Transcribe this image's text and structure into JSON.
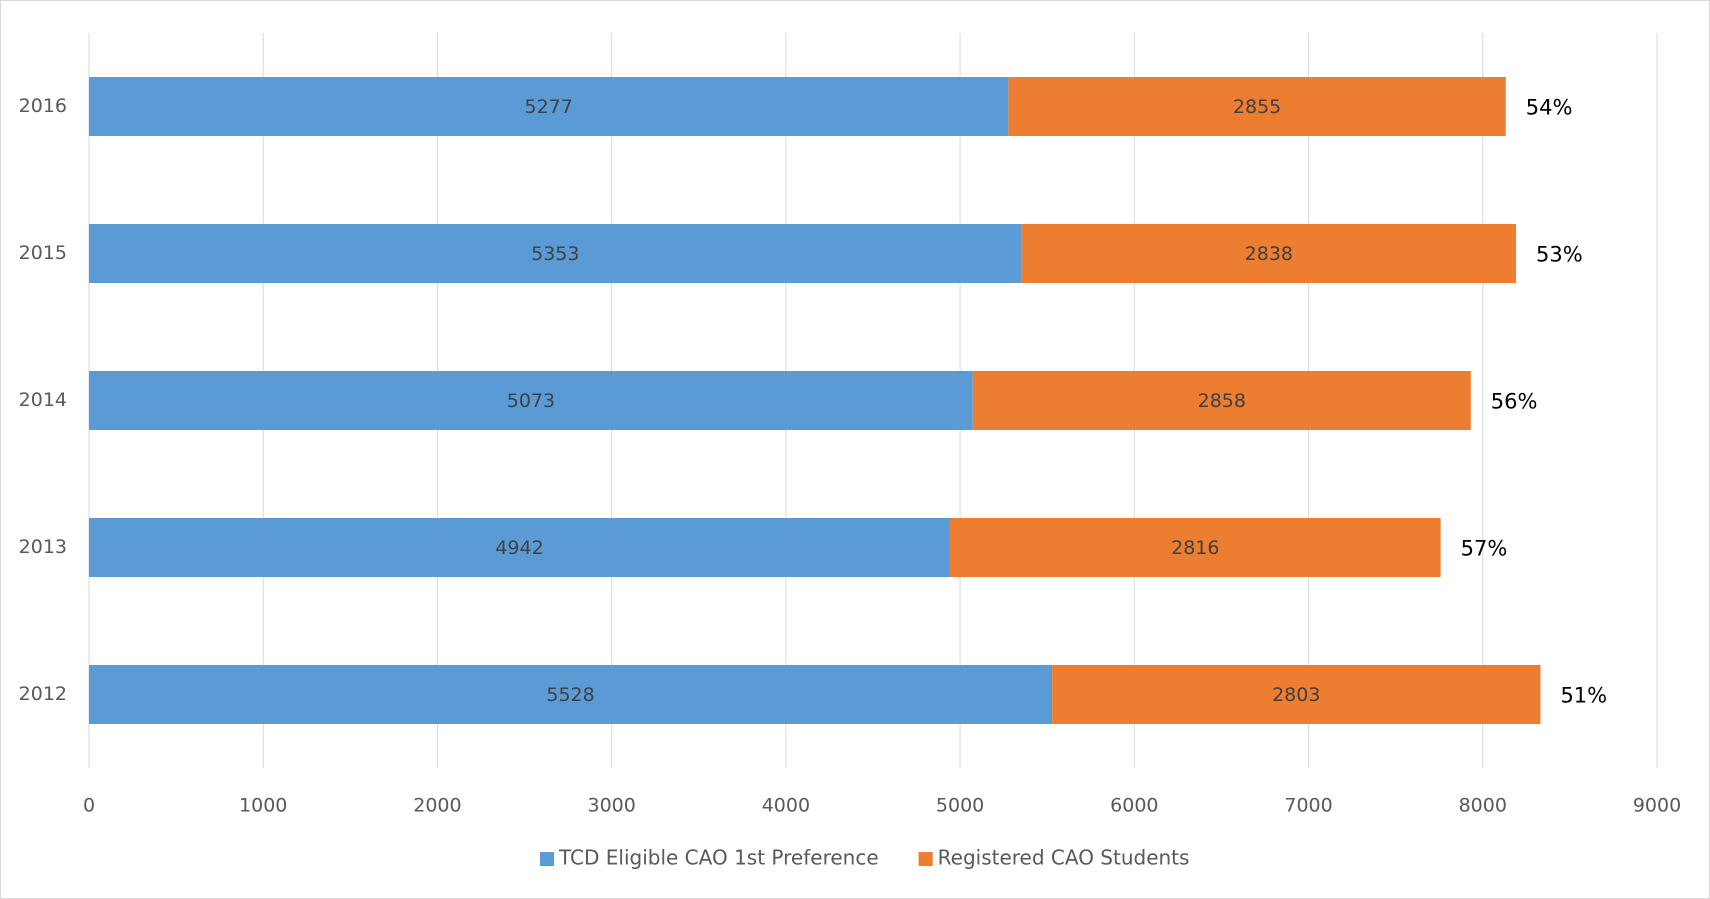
{
  "chart_data": {
    "type": "stacked_barh",
    "categories": [
      "2016",
      "2015",
      "2014",
      "2013",
      "2012"
    ],
    "series": [
      {
        "name": "TCD Eligible CAO 1st Preference",
        "color": "#5b9bd5",
        "values": [
          5277,
          5353,
          5073,
          4942,
          5528
        ]
      },
      {
        "name": "Registered CAO Students",
        "color": "#ed7d31",
        "values": [
          2855,
          2838,
          2858,
          2816,
          2803
        ]
      }
    ],
    "annotations": [
      "54%",
      "53%",
      "56%",
      "57%",
      "51%"
    ],
    "xlim": [
      0,
      9000
    ],
    "xticks": [
      0,
      1000,
      2000,
      3000,
      4000,
      5000,
      6000,
      7000,
      8000,
      9000
    ],
    "grid": true,
    "legend": "bottom"
  }
}
